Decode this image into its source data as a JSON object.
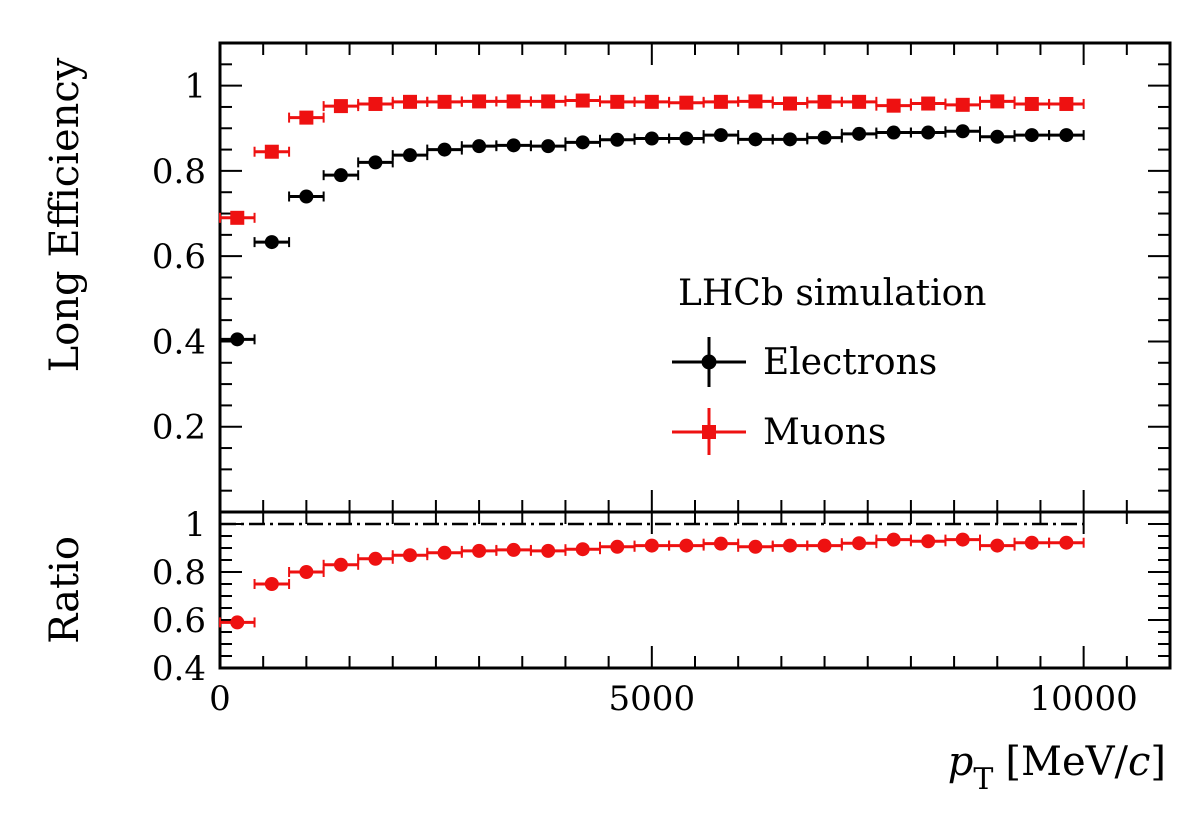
{
  "chart_data": {
    "type": "scatter",
    "experiment_label": "LHCb simulation",
    "x": {
      "label_main": "p",
      "label_sub": "T",
      "label_unit_open": "[MeV/",
      "label_unit_italic": "c",
      "label_unit_close": "]",
      "range": [
        0,
        11000
      ],
      "tick_labels": [
        "0",
        "5000",
        "10000"
      ]
    },
    "bin_edges": [
      0,
      400,
      800,
      1200,
      1600,
      2000,
      2400,
      2800,
      3200,
      3600,
      4000,
      4400,
      4800,
      5200,
      5600,
      6000,
      6400,
      6800,
      7200,
      7600,
      8000,
      8400,
      8800,
      9200,
      9600,
      10000
    ],
    "top_panel": {
      "ylabel": "Long Efficiency",
      "ylim": [
        0.0,
        1.1
      ],
      "y_tick_labels": [
        "0.2",
        "0.4",
        "0.6",
        "0.8",
        "1"
      ],
      "series": [
        {
          "name": "Electrons",
          "color": "#000000",
          "marker": "circle",
          "values": [
            0.405,
            0.633,
            0.74,
            0.79,
            0.82,
            0.837,
            0.85,
            0.858,
            0.86,
            0.858,
            0.867,
            0.873,
            0.876,
            0.876,
            0.884,
            0.874,
            0.874,
            0.878,
            0.887,
            0.89,
            0.89,
            0.893,
            0.88,
            0.884,
            0.884
          ]
        },
        {
          "name": "Muons",
          "color": "#ee1111",
          "marker": "square",
          "values": [
            0.69,
            0.845,
            0.925,
            0.952,
            0.957,
            0.962,
            0.962,
            0.963,
            0.963,
            0.963,
            0.965,
            0.962,
            0.962,
            0.96,
            0.962,
            0.963,
            0.958,
            0.962,
            0.962,
            0.953,
            0.958,
            0.955,
            0.963,
            0.957,
            0.957
          ]
        }
      ]
    },
    "bottom_panel": {
      "ylabel": "Ratio",
      "ylim": [
        0.4,
        1.05
      ],
      "y_tick_labels": [
        "0.4",
        "0.6",
        "0.8",
        "1"
      ],
      "reference_line": 1.0,
      "series": [
        {
          "name": "Ratio",
          "color": "#ee1111",
          "marker": "circle",
          "values": [
            0.59,
            0.75,
            0.8,
            0.83,
            0.855,
            0.87,
            0.88,
            0.888,
            0.892,
            0.888,
            0.895,
            0.905,
            0.91,
            0.91,
            0.918,
            0.905,
            0.91,
            0.91,
            0.92,
            0.935,
            0.928,
            0.935,
            0.91,
            0.922,
            0.922
          ]
        }
      ]
    }
  }
}
